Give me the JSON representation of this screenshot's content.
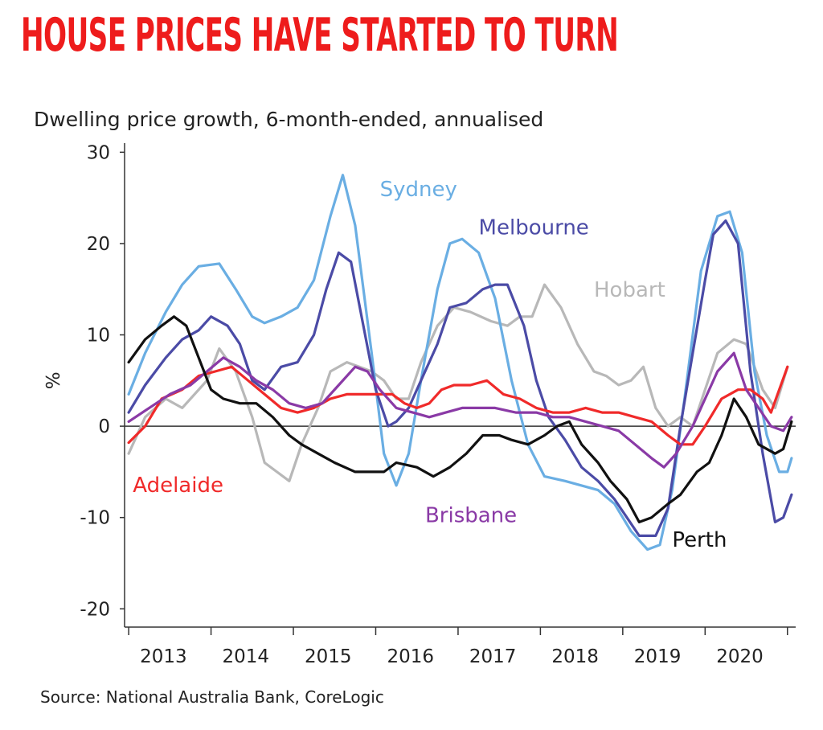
{
  "headline": "HOUSE PRICES HAVE STARTED TO TURN",
  "colors": {
    "headline": "#ee1c1c",
    "sydney": "#6aaee3",
    "melbourne": "#4b4ba6",
    "hobart": "#b8b8b8",
    "adelaide": "#f02a2a",
    "brisbane": "#8a3aa6",
    "perth": "#111111",
    "axis": "#333333"
  },
  "source": "Source: National Australia Bank, CoreLogic",
  "chart_data": {
    "type": "line",
    "title": "Dwelling price growth, 6-month-ended, annualised",
    "ylabel": "%",
    "xlabel": "",
    "xlim": [
      2012.95,
      2021.1
    ],
    "ylim": [
      -22,
      31
    ],
    "yticks": [
      30,
      20,
      10,
      0,
      -10,
      -20
    ],
    "ytick_labels": [
      "30",
      "20",
      "10",
      "0",
      "-10",
      "-20"
    ],
    "xticks": [
      "2013",
      "2014",
      "2015",
      "2016",
      "2017",
      "2018",
      "2019",
      "2020"
    ],
    "zero_line": true,
    "grid": false,
    "legend": "inline labels next to lines",
    "series": [
      {
        "name": "Hobart",
        "color_key": "hobart",
        "points": [
          [
            2013.0,
            -3
          ],
          [
            2013.2,
            1
          ],
          [
            2013.45,
            3
          ],
          [
            2013.65,
            2
          ],
          [
            2013.95,
            5
          ],
          [
            2014.1,
            8.5
          ],
          [
            2014.3,
            6
          ],
          [
            2014.5,
            1
          ],
          [
            2014.65,
            -4
          ],
          [
            2014.8,
            -5
          ],
          [
            2014.95,
            -6
          ],
          [
            2015.1,
            -2
          ],
          [
            2015.3,
            2
          ],
          [
            2015.45,
            6
          ],
          [
            2015.65,
            7
          ],
          [
            2015.8,
            6.5
          ],
          [
            2015.95,
            6
          ],
          [
            2016.1,
            5
          ],
          [
            2016.25,
            3
          ],
          [
            2016.4,
            3
          ],
          [
            2016.55,
            7
          ],
          [
            2016.75,
            11
          ],
          [
            2016.95,
            13
          ],
          [
            2017.15,
            12.5
          ],
          [
            2017.4,
            11.5
          ],
          [
            2017.6,
            11
          ],
          [
            2017.75,
            12
          ],
          [
            2017.9,
            12
          ],
          [
            2018.05,
            15.5
          ],
          [
            2018.25,
            13
          ],
          [
            2018.45,
            9
          ],
          [
            2018.65,
            6
          ],
          [
            2018.8,
            5.5
          ],
          [
            2018.95,
            4.5
          ],
          [
            2019.1,
            5
          ],
          [
            2019.25,
            6.5
          ],
          [
            2019.4,
            2
          ],
          [
            2019.55,
            0
          ],
          [
            2019.7,
            1
          ],
          [
            2019.85,
            0
          ],
          [
            2020.0,
            4
          ],
          [
            2020.15,
            8
          ],
          [
            2020.35,
            9.5
          ],
          [
            2020.5,
            9
          ],
          [
            2020.7,
            4
          ],
          [
            2020.85,
            2
          ],
          [
            2021.0,
            6.5
          ]
        ]
      },
      {
        "name": "Sydney",
        "color_key": "sydney",
        "points": [
          [
            2013.0,
            3.5
          ],
          [
            2013.2,
            8
          ],
          [
            2013.45,
            12.5
          ],
          [
            2013.65,
            15.5
          ],
          [
            2013.85,
            17.5
          ],
          [
            2014.1,
            17.8
          ],
          [
            2014.3,
            15
          ],
          [
            2014.5,
            12
          ],
          [
            2014.65,
            11.3
          ],
          [
            2014.85,
            12
          ],
          [
            2015.05,
            13
          ],
          [
            2015.25,
            16
          ],
          [
            2015.45,
            23
          ],
          [
            2015.6,
            27.5
          ],
          [
            2015.75,
            22
          ],
          [
            2015.95,
            8
          ],
          [
            2016.1,
            -3
          ],
          [
            2016.25,
            -6.5
          ],
          [
            2016.4,
            -3
          ],
          [
            2016.55,
            5
          ],
          [
            2016.75,
            15
          ],
          [
            2016.9,
            20
          ],
          [
            2017.05,
            20.5
          ],
          [
            2017.25,
            19
          ],
          [
            2017.45,
            14
          ],
          [
            2017.65,
            5
          ],
          [
            2017.85,
            -2
          ],
          [
            2018.05,
            -5.5
          ],
          [
            2018.3,
            -6
          ],
          [
            2018.5,
            -6.5
          ],
          [
            2018.7,
            -7
          ],
          [
            2018.9,
            -8.5
          ],
          [
            2019.1,
            -11.5
          ],
          [
            2019.3,
            -13.5
          ],
          [
            2019.45,
            -13
          ],
          [
            2019.6,
            -7
          ],
          [
            2019.75,
            3
          ],
          [
            2019.95,
            17
          ],
          [
            2020.15,
            23
          ],
          [
            2020.3,
            23.5
          ],
          [
            2020.45,
            19
          ],
          [
            2020.6,
            6
          ],
          [
            2020.75,
            -1
          ],
          [
            2020.9,
            -5
          ],
          [
            2021.0,
            -5
          ],
          [
            2021.05,
            -3.5
          ]
        ]
      },
      {
        "name": "Melbourne",
        "color_key": "melbourne",
        "points": [
          [
            2013.0,
            1.5
          ],
          [
            2013.2,
            4.5
          ],
          [
            2013.45,
            7.5
          ],
          [
            2013.65,
            9.5
          ],
          [
            2013.85,
            10.5
          ],
          [
            2014.0,
            12
          ],
          [
            2014.2,
            11
          ],
          [
            2014.35,
            9
          ],
          [
            2014.5,
            5
          ],
          [
            2014.65,
            4
          ],
          [
            2014.85,
            6.5
          ],
          [
            2015.05,
            7
          ],
          [
            2015.25,
            10
          ],
          [
            2015.4,
            15
          ],
          [
            2015.55,
            19
          ],
          [
            2015.7,
            18
          ],
          [
            2015.85,
            11
          ],
          [
            2016.0,
            4
          ],
          [
            2016.15,
            0
          ],
          [
            2016.25,
            0.5
          ],
          [
            2016.4,
            2
          ],
          [
            2016.55,
            5
          ],
          [
            2016.75,
            9
          ],
          [
            2016.9,
            13
          ],
          [
            2017.1,
            13.5
          ],
          [
            2017.3,
            15
          ],
          [
            2017.45,
            15.5
          ],
          [
            2017.6,
            15.5
          ],
          [
            2017.8,
            11
          ],
          [
            2017.95,
            5
          ],
          [
            2018.1,
            1
          ],
          [
            2018.3,
            -1.5
          ],
          [
            2018.5,
            -4.5
          ],
          [
            2018.7,
            -6
          ],
          [
            2018.9,
            -8
          ],
          [
            2019.05,
            -10
          ],
          [
            2019.2,
            -12
          ],
          [
            2019.4,
            -12
          ],
          [
            2019.55,
            -9
          ],
          [
            2019.7,
            0
          ],
          [
            2019.85,
            8
          ],
          [
            2020.0,
            16
          ],
          [
            2020.1,
            21
          ],
          [
            2020.25,
            22.5
          ],
          [
            2020.4,
            20
          ],
          [
            2020.55,
            6
          ],
          [
            2020.7,
            -3
          ],
          [
            2020.85,
            -10.5
          ],
          [
            2020.95,
            -10
          ],
          [
            2021.05,
            -7.5
          ]
        ]
      },
      {
        "name": "Adelaide",
        "color_key": "adelaide",
        "points": [
          [
            2013.0,
            -1.8
          ],
          [
            2013.2,
            0
          ],
          [
            2013.4,
            3
          ],
          [
            2013.65,
            4
          ],
          [
            2013.85,
            5.5
          ],
          [
            2014.05,
            6
          ],
          [
            2014.25,
            6.5
          ],
          [
            2014.45,
            5
          ],
          [
            2014.65,
            3.5
          ],
          [
            2014.85,
            2
          ],
          [
            2015.05,
            1.5
          ],
          [
            2015.25,
            2
          ],
          [
            2015.45,
            3
          ],
          [
            2015.65,
            3.5
          ],
          [
            2015.85,
            3.5
          ],
          [
            2016.0,
            3.5
          ],
          [
            2016.2,
            3.5
          ],
          [
            2016.35,
            2.5
          ],
          [
            2016.5,
            2
          ],
          [
            2016.65,
            2.5
          ],
          [
            2016.8,
            4
          ],
          [
            2016.95,
            4.5
          ],
          [
            2017.15,
            4.5
          ],
          [
            2017.35,
            5
          ],
          [
            2017.55,
            3.5
          ],
          [
            2017.75,
            3
          ],
          [
            2017.95,
            2
          ],
          [
            2018.15,
            1.5
          ],
          [
            2018.35,
            1.5
          ],
          [
            2018.55,
            2
          ],
          [
            2018.75,
            1.5
          ],
          [
            2018.95,
            1.5
          ],
          [
            2019.15,
            1
          ],
          [
            2019.35,
            0.5
          ],
          [
            2019.55,
            -1
          ],
          [
            2019.7,
            -2
          ],
          [
            2019.85,
            -2
          ],
          [
            2020.0,
            0
          ],
          [
            2020.2,
            3
          ],
          [
            2020.4,
            4
          ],
          [
            2020.55,
            4
          ],
          [
            2020.7,
            3
          ],
          [
            2020.8,
            1.5
          ],
          [
            2021.0,
            6.5
          ]
        ]
      },
      {
        "name": "Brisbane",
        "color_key": "brisbane",
        "points": [
          [
            2013.0,
            0.5
          ],
          [
            2013.25,
            2
          ],
          [
            2013.5,
            3.5
          ],
          [
            2013.75,
            4.5
          ],
          [
            2013.95,
            6
          ],
          [
            2014.15,
            7.5
          ],
          [
            2014.35,
            6.5
          ],
          [
            2014.55,
            5
          ],
          [
            2014.75,
            4
          ],
          [
            2014.95,
            2.5
          ],
          [
            2015.15,
            2
          ],
          [
            2015.35,
            2.5
          ],
          [
            2015.55,
            4.5
          ],
          [
            2015.75,
            6.5
          ],
          [
            2015.9,
            6
          ],
          [
            2016.05,
            4
          ],
          [
            2016.25,
            2
          ],
          [
            2016.45,
            1.5
          ],
          [
            2016.65,
            1
          ],
          [
            2016.85,
            1.5
          ],
          [
            2017.05,
            2
          ],
          [
            2017.25,
            2
          ],
          [
            2017.45,
            2
          ],
          [
            2017.7,
            1.5
          ],
          [
            2017.95,
            1.5
          ],
          [
            2018.15,
            1
          ],
          [
            2018.35,
            1
          ],
          [
            2018.55,
            0.5
          ],
          [
            2018.75,
            0
          ],
          [
            2018.95,
            -0.5
          ],
          [
            2019.15,
            -2
          ],
          [
            2019.35,
            -3.5
          ],
          [
            2019.5,
            -4.5
          ],
          [
            2019.65,
            -3
          ],
          [
            2019.85,
            0
          ],
          [
            2020.0,
            3
          ],
          [
            2020.15,
            6
          ],
          [
            2020.35,
            8
          ],
          [
            2020.5,
            4
          ],
          [
            2020.65,
            2
          ],
          [
            2020.8,
            0
          ],
          [
            2020.95,
            -0.5
          ],
          [
            2021.05,
            1
          ]
        ]
      },
      {
        "name": "Perth",
        "color_key": "perth",
        "points": [
          [
            2013.0,
            7
          ],
          [
            2013.2,
            9.5
          ],
          [
            2013.4,
            11
          ],
          [
            2013.55,
            12
          ],
          [
            2013.7,
            11
          ],
          [
            2013.85,
            7.5
          ],
          [
            2014.0,
            4
          ],
          [
            2014.15,
            3
          ],
          [
            2014.35,
            2.5
          ],
          [
            2014.55,
            2.5
          ],
          [
            2014.75,
            1
          ],
          [
            2014.95,
            -1
          ],
          [
            2015.1,
            -2
          ],
          [
            2015.3,
            -3
          ],
          [
            2015.5,
            -4
          ],
          [
            2015.75,
            -5
          ],
          [
            2015.95,
            -5
          ],
          [
            2016.1,
            -5
          ],
          [
            2016.25,
            -4
          ],
          [
            2016.5,
            -4.5
          ],
          [
            2016.7,
            -5.5
          ],
          [
            2016.9,
            -4.5
          ],
          [
            2017.1,
            -3
          ],
          [
            2017.3,
            -1
          ],
          [
            2017.5,
            -1
          ],
          [
            2017.65,
            -1.5
          ],
          [
            2017.85,
            -2
          ],
          [
            2018.05,
            -1
          ],
          [
            2018.2,
            0
          ],
          [
            2018.35,
            0.5
          ],
          [
            2018.5,
            -2
          ],
          [
            2018.7,
            -4
          ],
          [
            2018.85,
            -6
          ],
          [
            2019.05,
            -8
          ],
          [
            2019.2,
            -10.5
          ],
          [
            2019.35,
            -10
          ],
          [
            2019.55,
            -8.5
          ],
          [
            2019.7,
            -7.5
          ],
          [
            2019.9,
            -5
          ],
          [
            2020.05,
            -4
          ],
          [
            2020.2,
            -1
          ],
          [
            2020.35,
            3
          ],
          [
            2020.5,
            1
          ],
          [
            2020.65,
            -2
          ],
          [
            2020.85,
            -3
          ],
          [
            2020.95,
            -2.5
          ],
          [
            2021.05,
            0.5
          ]
        ]
      }
    ],
    "labels": [
      {
        "text": "Sydney",
        "color_key": "sydney",
        "x": 2016.05,
        "y": 25.2
      },
      {
        "text": "Melbourne",
        "color_key": "melbourne",
        "x": 2017.25,
        "y": 21
      },
      {
        "text": "Hobart",
        "color_key": "hobart",
        "x": 2018.65,
        "y": 14.2
      },
      {
        "text": "Adelaide",
        "color_key": "adelaide",
        "x": 2013.05,
        "y": -7.2
      },
      {
        "text": "Brisbane",
        "color_key": "brisbane",
        "x": 2016.6,
        "y": -10.5
      },
      {
        "text": "Perth",
        "color_key": "perth",
        "x": 2019.6,
        "y": -13.2
      }
    ]
  }
}
